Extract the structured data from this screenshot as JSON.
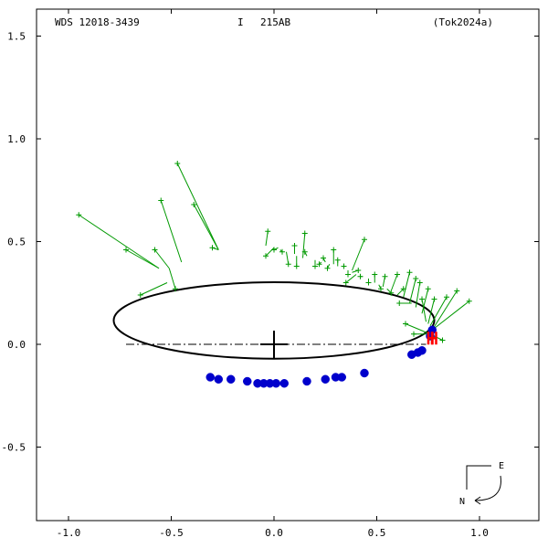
{
  "header": {
    "star_id": "WDS 12018-3439",
    "grade_label": "I",
    "discoverer": "215AB",
    "reference": "(Tok2024a)"
  },
  "chart_data": {
    "type": "scatter",
    "title": "",
    "xlabel": "",
    "ylabel": "",
    "xlim": [
      -1.2,
      1.4
    ],
    "ylim": [
      -0.95,
      1.6
    ],
    "y_inverted": true,
    "x_ticks": [
      {
        "value": -1.0,
        "label": "-1.0"
      },
      {
        "value": -0.5,
        "label": "-0.5"
      },
      {
        "value": 0.0,
        "label": "0.0"
      },
      {
        "value": 0.5,
        "label": "0.5"
      },
      {
        "value": 1.0,
        "label": "1.0"
      }
    ],
    "y_ticks": [
      {
        "value": 1.5,
        "label": "1.5"
      },
      {
        "value": 1.0,
        "label": "1.0"
      },
      {
        "value": 0.5,
        "label": "0.5"
      },
      {
        "value": 0.0,
        "label": "0.0"
      },
      {
        "value": -0.5,
        "label": "-0.5"
      }
    ],
    "primary_star": {
      "x": 0.0,
      "y": 0.0
    },
    "orbit": {
      "center_x": 0.0,
      "center_y": 0.116,
      "semi_axis_x": 0.78,
      "semi_axis_y": 0.186
    },
    "line_of_nodes": {
      "x1": -0.72,
      "y1": 0.0,
      "x2": 0.74,
      "y2": 0.0
    },
    "visual_obs": [
      {
        "x": -0.95,
        "y": 0.63,
        "ox": -0.56,
        "oy": 0.37
      },
      {
        "x": -0.72,
        "y": 0.46,
        "ox": -0.56,
        "oy": 0.37
      },
      {
        "x": -0.65,
        "y": 0.24,
        "ox": -0.52,
        "oy": 0.3
      },
      {
        "x": -0.58,
        "y": 0.46,
        "ox": -0.51,
        "oy": 0.37
      },
      {
        "x": -0.48,
        "y": 0.27,
        "ox": -0.51,
        "oy": 0.37
      },
      {
        "x": -0.55,
        "y": 0.7,
        "ox": -0.45,
        "oy": 0.4
      },
      {
        "x": -0.47,
        "y": 0.88,
        "ox": -0.27,
        "oy": 0.46
      },
      {
        "x": -0.39,
        "y": 0.68,
        "ox": -0.27,
        "oy": 0.46
      },
      {
        "x": -0.3,
        "y": 0.47,
        "ox": -0.27,
        "oy": 0.46
      },
      {
        "x": -0.03,
        "y": 0.55,
        "ox": -0.04,
        "oy": 0.48
      },
      {
        "x": 0.0,
        "y": 0.46,
        "ox": 0.02,
        "oy": 0.47
      },
      {
        "x": -0.04,
        "y": 0.43,
        "ox": 0.0,
        "oy": 0.47
      },
      {
        "x": 0.04,
        "y": 0.45,
        "ox": 0.03,
        "oy": 0.46
      },
      {
        "x": 0.07,
        "y": 0.39,
        "ox": 0.06,
        "oy": 0.45
      },
      {
        "x": 0.1,
        "y": 0.48,
        "ox": 0.1,
        "oy": 0.44
      },
      {
        "x": 0.11,
        "y": 0.38,
        "ox": 0.11,
        "oy": 0.43
      },
      {
        "x": 0.15,
        "y": 0.54,
        "ox": 0.14,
        "oy": 0.42
      },
      {
        "x": 0.15,
        "y": 0.45,
        "ox": 0.16,
        "oy": 0.43
      },
      {
        "x": 0.2,
        "y": 0.38,
        "ox": 0.2,
        "oy": 0.41
      },
      {
        "x": 0.22,
        "y": 0.39,
        "ox": 0.23,
        "oy": 0.4
      },
      {
        "x": 0.24,
        "y": 0.42,
        "ox": 0.25,
        "oy": 0.4
      },
      {
        "x": 0.26,
        "y": 0.37,
        "ox": 0.27,
        "oy": 0.39
      },
      {
        "x": 0.29,
        "y": 0.46,
        "ox": 0.29,
        "oy": 0.39
      },
      {
        "x": 0.31,
        "y": 0.41,
        "ox": 0.31,
        "oy": 0.38
      },
      {
        "x": 0.34,
        "y": 0.38,
        "ox": 0.34,
        "oy": 0.37
      },
      {
        "x": 0.36,
        "y": 0.34,
        "ox": 0.36,
        "oy": 0.36
      },
      {
        "x": 0.41,
        "y": 0.36,
        "ox": 0.38,
        "oy": 0.35
      },
      {
        "x": 0.44,
        "y": 0.51,
        "ox": 0.38,
        "oy": 0.36
      },
      {
        "x": 0.35,
        "y": 0.3,
        "ox": 0.4,
        "oy": 0.34
      },
      {
        "x": 0.42,
        "y": 0.33,
        "ox": 0.43,
        "oy": 0.33
      },
      {
        "x": 0.46,
        "y": 0.3,
        "ox": 0.46,
        "oy": 0.32
      },
      {
        "x": 0.49,
        "y": 0.34,
        "ox": 0.49,
        "oy": 0.3
      },
      {
        "x": 0.52,
        "y": 0.27,
        "ox": 0.51,
        "oy": 0.29
      },
      {
        "x": 0.54,
        "y": 0.33,
        "ox": 0.53,
        "oy": 0.28
      },
      {
        "x": 0.57,
        "y": 0.25,
        "ox": 0.55,
        "oy": 0.27
      },
      {
        "x": 0.6,
        "y": 0.34,
        "ox": 0.57,
        "oy": 0.26
      },
      {
        "x": 0.63,
        "y": 0.27,
        "ox": 0.6,
        "oy": 0.24
      },
      {
        "x": 0.66,
        "y": 0.35,
        "ox": 0.63,
        "oy": 0.23
      },
      {
        "x": 0.69,
        "y": 0.32,
        "ox": 0.66,
        "oy": 0.2
      },
      {
        "x": 0.71,
        "y": 0.3,
        "ox": 0.69,
        "oy": 0.18
      },
      {
        "x": 0.75,
        "y": 0.27,
        "ox": 0.72,
        "oy": 0.15
      },
      {
        "x": 0.61,
        "y": 0.2,
        "ox": 0.67,
        "oy": 0.2
      },
      {
        "x": 0.72,
        "y": 0.22,
        "ox": 0.74,
        "oy": 0.11
      },
      {
        "x": 0.78,
        "y": 0.22,
        "ox": 0.75,
        "oy": 0.1
      },
      {
        "x": 0.84,
        "y": 0.23,
        "ox": 0.76,
        "oy": 0.09
      },
      {
        "x": 0.89,
        "y": 0.26,
        "ox": 0.77,
        "oy": 0.07
      },
      {
        "x": 0.95,
        "y": 0.21,
        "ox": 0.77,
        "oy": 0.07
      },
      {
        "x": 0.64,
        "y": 0.1,
        "ox": 0.76,
        "oy": 0.05
      },
      {
        "x": 0.68,
        "y": 0.05,
        "ox": 0.76,
        "oy": 0.05
      },
      {
        "x": 0.82,
        "y": 0.02,
        "ox": 0.76,
        "oy": 0.05
      }
    ],
    "speckle_obs": [
      {
        "x": -0.31,
        "y": -0.16
      },
      {
        "x": -0.27,
        "y": -0.17
      },
      {
        "x": -0.21,
        "y": -0.17
      },
      {
        "x": -0.13,
        "y": -0.18
      },
      {
        "x": -0.08,
        "y": -0.19
      },
      {
        "x": -0.05,
        "y": -0.19
      },
      {
        "x": -0.02,
        "y": -0.19
      },
      {
        "x": 0.01,
        "y": -0.19
      },
      {
        "x": 0.05,
        "y": -0.19
      },
      {
        "x": 0.16,
        "y": -0.18
      },
      {
        "x": 0.25,
        "y": -0.17
      },
      {
        "x": 0.3,
        "y": -0.16
      },
      {
        "x": 0.33,
        "y": -0.16
      },
      {
        "x": 0.44,
        "y": -0.14
      },
      {
        "x": 0.67,
        "y": -0.05
      },
      {
        "x": 0.7,
        "y": -0.04
      },
      {
        "x": 0.72,
        "y": -0.03
      },
      {
        "x": 0.76,
        "y": 0.04
      },
      {
        "x": 0.77,
        "y": 0.07
      }
    ],
    "newest_obs": [
      {
        "x": 0.76,
        "y": 0.03
      },
      {
        "x": 0.78,
        "y": 0.03
      }
    ],
    "compass": {
      "east_label": "E",
      "north_label": "N"
    },
    "colors": {
      "axes": "#000000",
      "orbit": "#000000",
      "visual": "#009900",
      "speckle": "#0000cc",
      "newest": "#ff0000"
    }
  }
}
